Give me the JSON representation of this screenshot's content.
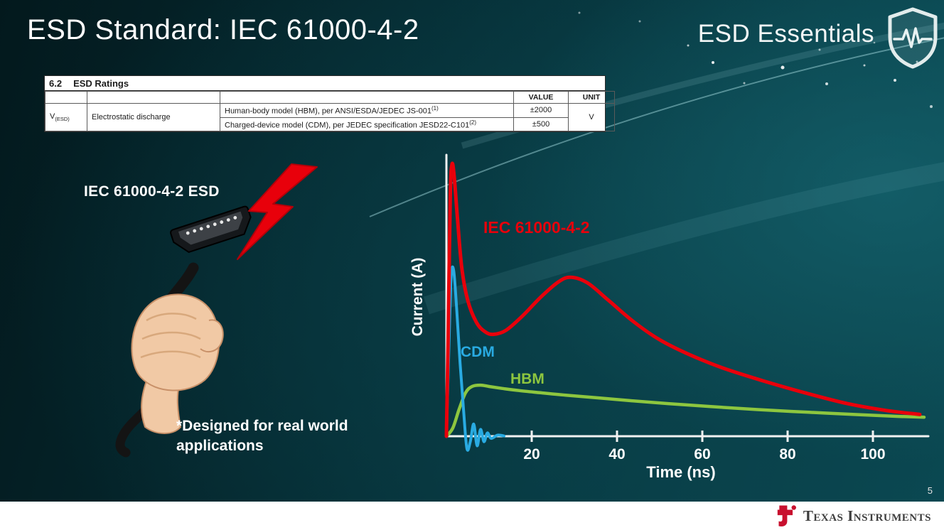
{
  "slide": {
    "title": "ESD Standard: IEC 61000-4-2",
    "brand": "ESD Essentials",
    "page_number": "5",
    "footer_brand": "Texas Instruments"
  },
  "ratings_table": {
    "section_number": "6.2",
    "section_title": "ESD Ratings",
    "col_value": "VALUE",
    "col_unit": "UNIT",
    "param_symbol": "V",
    "param_symbol_sub": "(ESD)",
    "param_name": "Electrostatic discharge",
    "rows": [
      {
        "model": "Human-body model (HBM), per ANSI/ESDA/JEDEC JS-001",
        "footnote": "(1)",
        "value": "±2000"
      },
      {
        "model": "Charged-device model (CDM), per JEDEC specification JESD22-C101",
        "footnote": "(2)",
        "value": "±500"
      }
    ],
    "unit": "V"
  },
  "illustration": {
    "caption": "IEC 61000-4-2 ESD",
    "note": "*Designed for real world\napplications"
  },
  "chart_data": {
    "type": "line",
    "title": "",
    "xlabel": "Time (ns)",
    "ylabel": "Current (A)",
    "x_ticks": [
      20,
      40,
      60,
      80,
      100
    ],
    "xlim": [
      0,
      112
    ],
    "ylim": [
      0,
      1.03
    ],
    "grid": false,
    "legend_position": "inline-labels",
    "series": [
      {
        "name": "IEC 61000-4-2",
        "color": "#e8000b",
        "width": 5,
        "x": [
          0,
          0.4,
          0.9,
          1.3,
          1.8,
          2.6,
          3.6,
          5,
          7,
          9,
          11,
          14,
          18,
          22,
          26,
          29,
          33,
          38,
          44,
          50,
          57,
          65,
          74,
          84,
          94,
          103,
          111
        ],
        "y": [
          0,
          0.35,
          0.88,
          1.0,
          0.96,
          0.8,
          0.62,
          0.5,
          0.42,
          0.385,
          0.375,
          0.39,
          0.445,
          0.51,
          0.565,
          0.585,
          0.565,
          0.5,
          0.42,
          0.355,
          0.3,
          0.25,
          0.205,
          0.16,
          0.12,
          0.095,
          0.08
        ]
      },
      {
        "name": "CDM",
        "color": "#29abe2",
        "width": 4,
        "x": [
          0,
          0.5,
          1.1,
          1.7,
          2.4,
          3.2,
          4.0,
          4.8,
          5.6,
          6.4,
          7.2,
          8.0,
          8.8,
          9.6,
          10.5,
          12,
          13.5
        ],
        "y": [
          0,
          0.28,
          0.58,
          0.61,
          0.47,
          0.27,
          0.1,
          -0.045,
          -0.02,
          0.045,
          -0.035,
          0.025,
          -0.02,
          0.012,
          -0.008,
          0.004,
          0.001
        ]
      },
      {
        "name": "HBM",
        "color": "#8dc63f",
        "width": 4.5,
        "x": [
          0,
          1.5,
          3,
          4.5,
          6,
          8,
          10,
          13,
          17,
          22,
          28,
          35,
          43,
          52,
          62,
          73,
          85,
          97,
          106,
          112
        ],
        "y": [
          0,
          0.03,
          0.1,
          0.16,
          0.183,
          0.188,
          0.183,
          0.176,
          0.168,
          0.16,
          0.151,
          0.142,
          0.131,
          0.12,
          0.109,
          0.098,
          0.088,
          0.079,
          0.073,
          0.07
        ]
      }
    ]
  }
}
